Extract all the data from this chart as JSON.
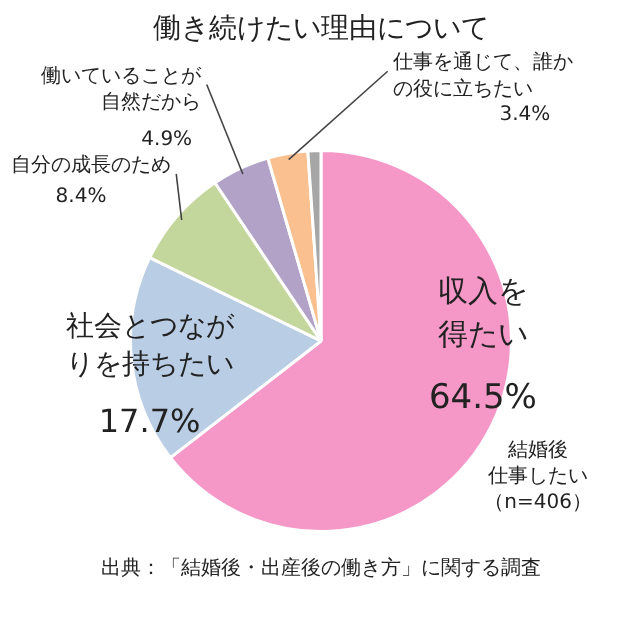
{
  "chart_data": {
    "type": "pie",
    "title": "働き続けたい理由について",
    "categories": [
      "収入を得たい",
      "社会とつながりを持ちたい",
      "自分の成長のため",
      "働いていることが自然だから",
      "仕事を通じて、誰かの役に立ちたい",
      null
    ],
    "values": [
      64.5,
      17.7,
      8.4,
      4.9,
      3.4,
      1.1
    ],
    "value_labels": [
      "64.5%",
      "17.7%",
      "8.4%",
      "4.9%",
      "3.4%",
      null
    ],
    "colors": [
      "#f598c8",
      "#b9cde5",
      "#c3d69b",
      "#b3a2c7",
      "#fac090",
      "#a6a6a6"
    ],
    "annotations": [
      "結婚後仕事したい（n=406）",
      "出典：「結婚後・出産後の働き方」に関する調査"
    ]
  }
}
